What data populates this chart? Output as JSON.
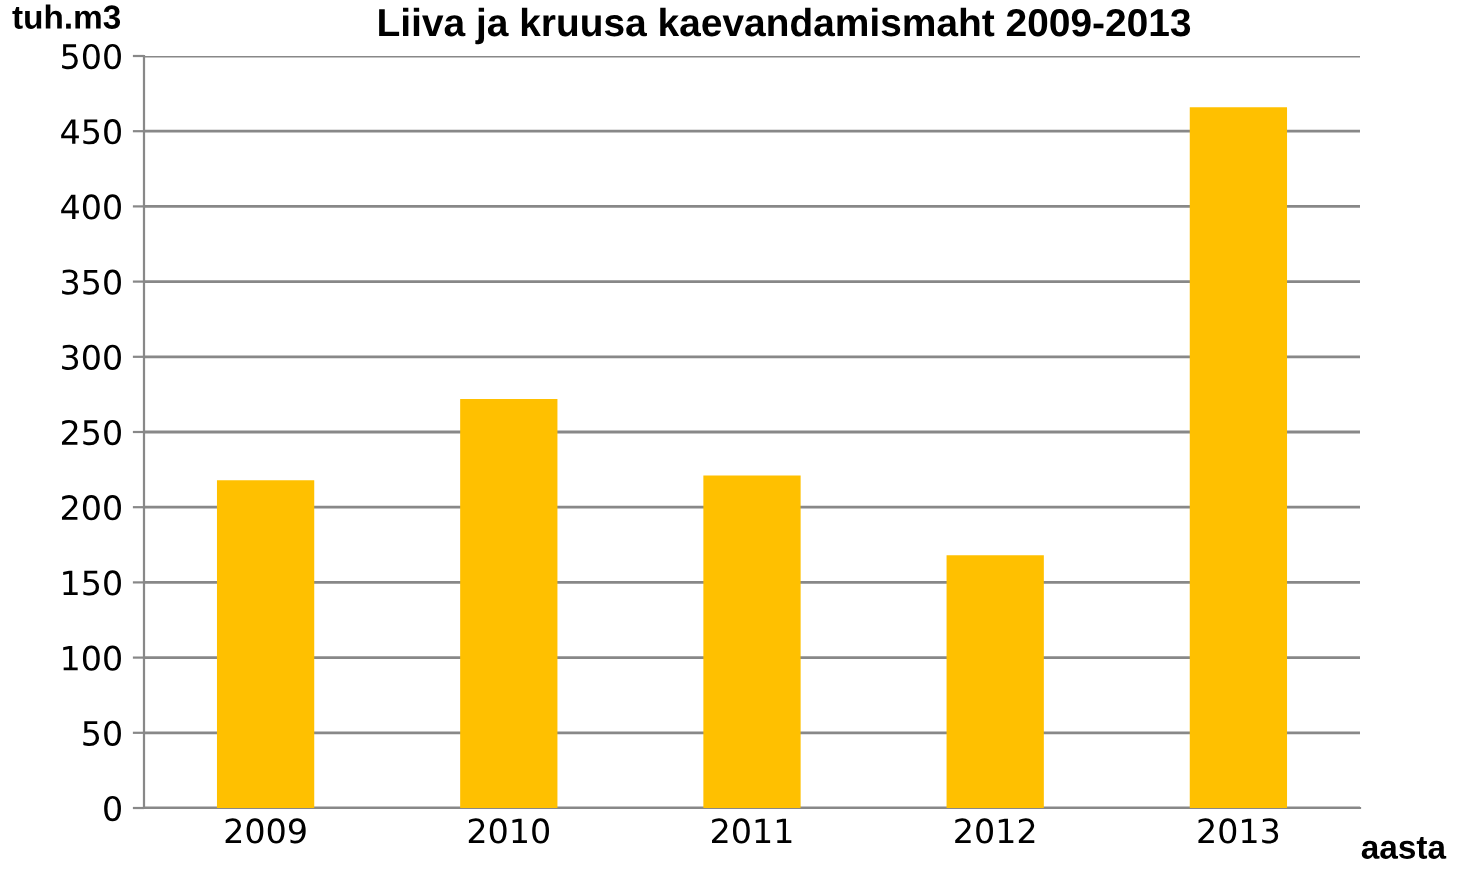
{
  "chart_data": {
    "type": "bar",
    "title": "Liiva ja kruusa kaevandamismaht 2009-2013",
    "ylabel": "tuh.m3",
    "xlabel": "aasta",
    "categories": [
      "2009",
      "2010",
      "2011",
      "2012",
      "2013"
    ],
    "values": [
      218,
      272,
      221,
      168,
      466
    ],
    "color": "#ffc000",
    "ylim": [
      0,
      500
    ],
    "yticks": [
      0,
      50,
      100,
      150,
      200,
      250,
      300,
      350,
      400,
      450,
      500
    ],
    "grid": "y",
    "legend": false
  }
}
